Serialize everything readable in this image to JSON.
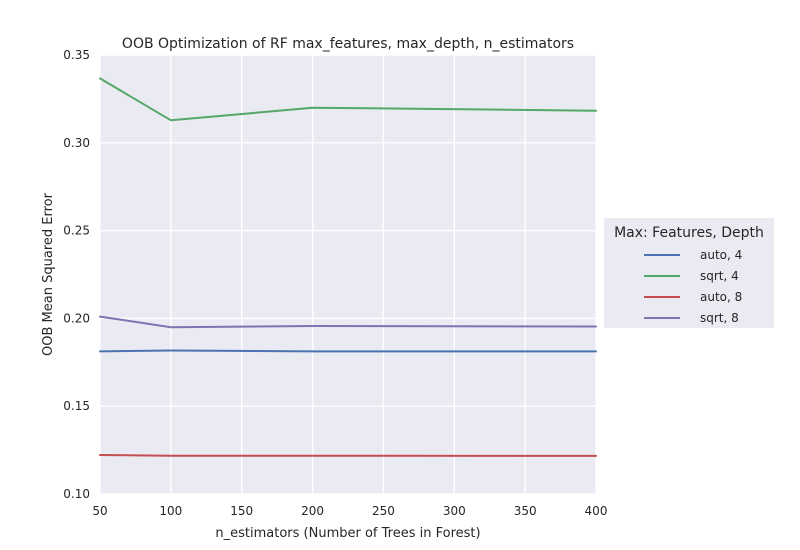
{
  "chart_data": {
    "type": "line",
    "title": "OOB Optimization of RF max_features, max_depth, n_estimators",
    "xlabel": "n_estimators (Number of Trees in Forest)",
    "ylabel": "OOB Mean Squared Error",
    "xlim": [
      50,
      400
    ],
    "ylim": [
      0.1,
      0.35
    ],
    "xticks": [
      "50",
      "100",
      "150",
      "200",
      "250",
      "300",
      "350",
      "400"
    ],
    "yticks": [
      "0.10",
      "0.15",
      "0.20",
      "0.25",
      "0.30",
      "0.35"
    ],
    "grid": true,
    "legend": {
      "title": "Max: Features, Depth",
      "position": "right"
    },
    "x": [
      50,
      100,
      200,
      400
    ],
    "series": [
      {
        "name": "auto, 4",
        "color": "#4c72b0",
        "values": [
          0.1812,
          0.1817,
          0.1812,
          0.1812
        ]
      },
      {
        "name": "sqrt, 4",
        "color": "#55a868",
        "values": [
          0.3367,
          0.3128,
          0.32,
          0.3183
        ]
      },
      {
        "name": "auto, 8",
        "color": "#c44e52",
        "values": [
          0.1222,
          0.1218,
          0.1218,
          0.1217
        ]
      },
      {
        "name": "sqrt, 8",
        "color": "#8172b2",
        "values": [
          0.201,
          0.195,
          0.1957,
          0.1954
        ]
      }
    ]
  }
}
